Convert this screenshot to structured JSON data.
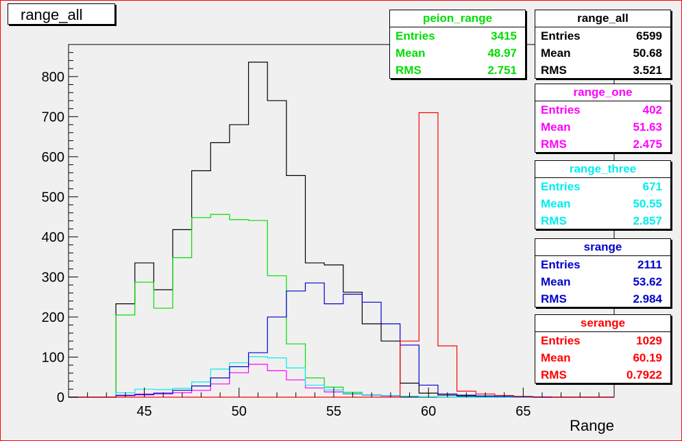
{
  "title": "range_all",
  "chart_data": {
    "type": "histogram",
    "xlabel": "Range",
    "ylabel": "",
    "xlim": [
      41,
      69.8
    ],
    "ylim": [
      0,
      880
    ],
    "bin_edges": [
      43.5,
      44.5,
      45.5,
      46.5,
      47.5,
      48.5,
      49.5,
      50.5,
      51.5,
      52.5,
      53.5,
      54.5,
      55.5,
      56.5,
      57.5,
      58.5,
      59.5,
      60.5,
      61.5,
      62.5,
      63.5,
      64.5,
      65.5,
      66.5,
      67.5,
      68.5,
      69.5
    ],
    "xticks": [
      45,
      50,
      55,
      60,
      65
    ],
    "yticks": [
      0,
      100,
      200,
      300,
      400,
      500,
      600,
      700,
      800
    ],
    "series": [
      {
        "name": "range_all",
        "color": "#000000",
        "values": [
          233,
          335,
          268,
          418,
          565,
          635,
          680,
          836,
          740,
          553,
          335,
          330,
          262,
          183,
          140,
          35,
          10,
          5,
          3,
          2,
          1,
          0,
          0,
          0,
          0,
          0
        ]
      },
      {
        "name": "peion_range",
        "color": "#00dd00",
        "values": [
          205,
          287,
          222,
          348,
          448,
          456,
          443,
          441,
          303,
          133,
          48,
          25,
          12,
          6,
          4,
          2,
          1,
          0,
          0,
          0,
          0,
          0,
          0,
          0,
          0,
          0
        ]
      },
      {
        "name": "range_one",
        "color": "#ff00ff",
        "values": [
          5,
          8,
          8,
          11,
          17,
          33,
          61,
          82,
          66,
          43,
          23,
          13,
          8,
          5,
          3,
          2,
          1,
          0,
          0,
          0,
          0,
          0,
          0,
          0,
          0,
          0
        ]
      },
      {
        "name": "range_three",
        "color": "#00eeee",
        "values": [
          11,
          20,
          19,
          22,
          38,
          70,
          86,
          101,
          98,
          73,
          30,
          18,
          9,
          6,
          4,
          2,
          1,
          0,
          0,
          0,
          0,
          0,
          0,
          0,
          0,
          0
        ]
      },
      {
        "name": "srange",
        "color": "#0000cc",
        "values": [
          4,
          6,
          10,
          17,
          28,
          48,
          76,
          111,
          200,
          265,
          285,
          233,
          257,
          237,
          183,
          130,
          30,
          8,
          5,
          3,
          2,
          1,
          0,
          0,
          0,
          0
        ]
      },
      {
        "name": "serange",
        "color": "#ff0000",
        "values": [
          0,
          0,
          0,
          0,
          0,
          0,
          0,
          0,
          0,
          0,
          0,
          0,
          0,
          0,
          0,
          140,
          710,
          128,
          15,
          8,
          4,
          2,
          1,
          0,
          0,
          0
        ]
      }
    ]
  },
  "stats": [
    {
      "name": "peion_range",
      "color": "#00dd00",
      "entries": "3415",
      "mean": "48.97",
      "rms": "2.751"
    },
    {
      "name": "range_all",
      "color": "#000000",
      "entries": "6599",
      "mean": "50.68",
      "rms": "3.521"
    },
    {
      "name": "range_one",
      "color": "#ff00ff",
      "entries": "402",
      "mean": "51.63",
      "rms": "2.475"
    },
    {
      "name": "range_three",
      "color": "#00eeee",
      "entries": "671",
      "mean": "50.55",
      "rms": "2.857"
    },
    {
      "name": "srange",
      "color": "#0000cc",
      "entries": "2111",
      "mean": "53.62",
      "rms": "2.984"
    },
    {
      "name": "serange",
      "color": "#ff0000",
      "entries": "1029",
      "mean": "60.19",
      "rms": "0.7922"
    }
  ],
  "labels": {
    "entries": "Entries",
    "mean": "Mean",
    "rms": "RMS"
  }
}
